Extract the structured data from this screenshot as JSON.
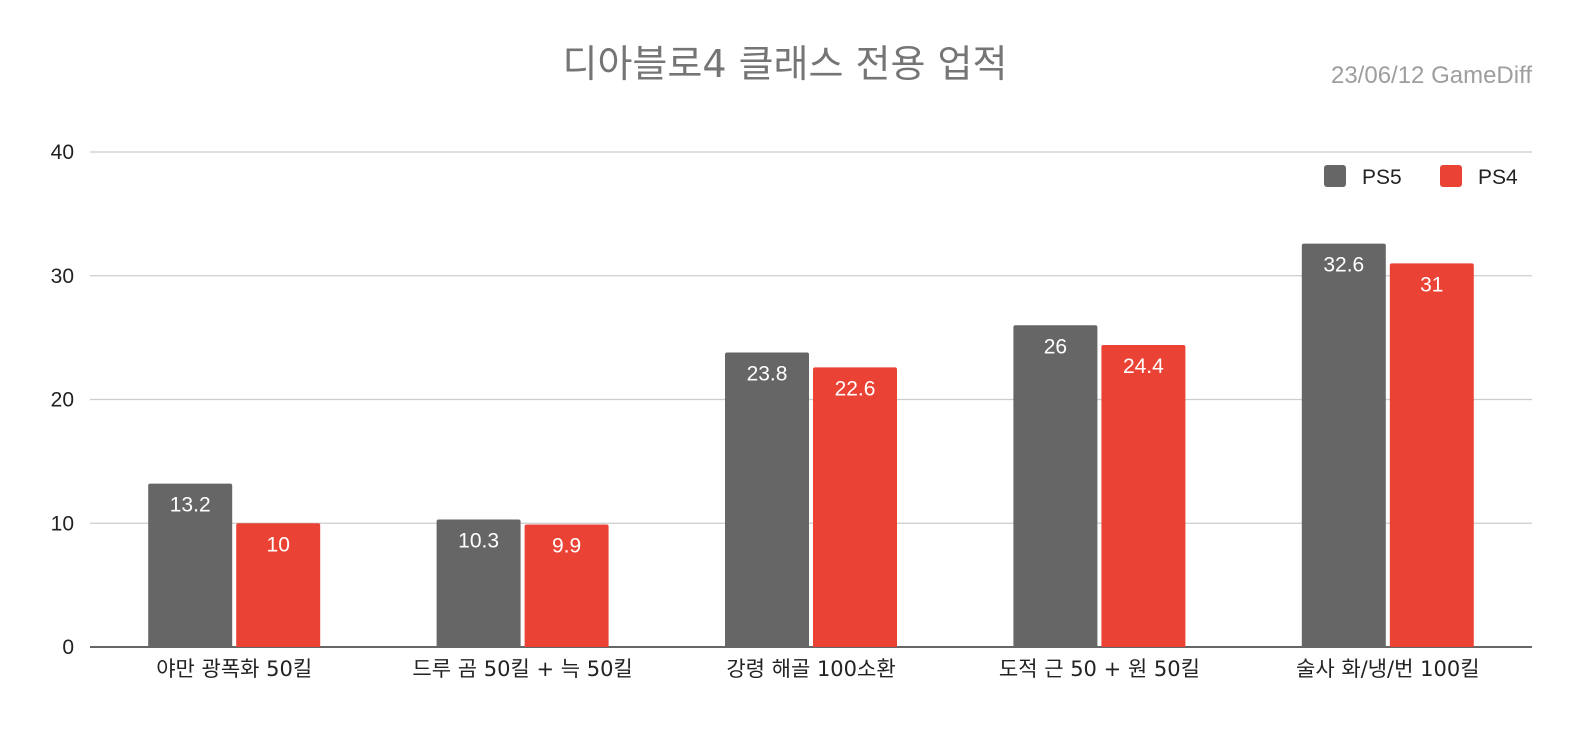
{
  "chart_data": {
    "type": "bar",
    "title": "디아블로4 클래스 전용 업적",
    "subtitle": "23/06/12  GameDiff",
    "xlabel": "",
    "ylabel": "",
    "ylim": [
      0,
      40
    ],
    "yticks": [
      0,
      10,
      20,
      30,
      40
    ],
    "grid": true,
    "legend_position": "top-right",
    "categories": [
      "야만 광폭화 50킬",
      "드루 곰 50킬 + 늑 50킬",
      "강령 해골 100소환",
      "도적 근 50 + 원 50킬",
      "술사 화/냉/번 100킬"
    ],
    "series": [
      {
        "name": "PS5",
        "color": "#666666",
        "values": [
          13.2,
          10.3,
          23.8,
          26,
          32.6
        ],
        "labels": [
          "13.2",
          "10.3",
          "23.8",
          "26",
          "32.6"
        ]
      },
      {
        "name": "PS4",
        "color": "#ea4335",
        "values": [
          10,
          9.9,
          22.6,
          24.4,
          31
        ],
        "labels": [
          "10",
          "9.9",
          "22.6",
          "24.4",
          "31"
        ]
      }
    ]
  }
}
